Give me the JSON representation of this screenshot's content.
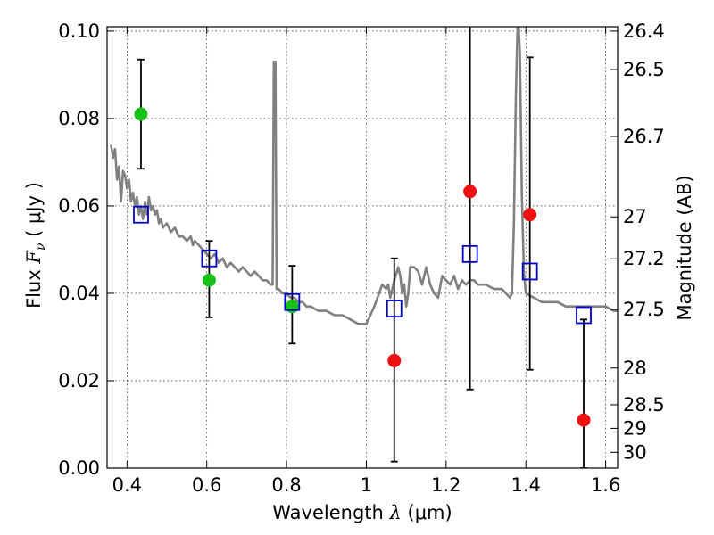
{
  "chart_data": {
    "type": "scatter",
    "xlabel": {
      "pre": "Wavelength  ",
      "sym": "λ",
      "post": " (μm)"
    },
    "ylabel": {
      "pre": "Flux  ",
      "sym": "F",
      "sub": "ν",
      "post": "  ( μJy )"
    },
    "y2label": "Magnitude (AB)",
    "xlim": [
      0.35,
      1.63
    ],
    "ylim": [
      0.0,
      0.101
    ],
    "xticks": [
      0.4,
      0.6,
      0.8,
      1.0,
      1.2,
      1.4,
      1.6
    ],
    "xtick_labels": [
      "0.4",
      "0.6",
      "0.8",
      "1",
      "1.2",
      "1.4",
      "1.6"
    ],
    "yticks": [
      0.0,
      0.02,
      0.04,
      0.06,
      0.08,
      0.1
    ],
    "ytick_labels": [
      "0.00",
      "0.02",
      "0.04",
      "0.06",
      "0.08",
      "0.10"
    ],
    "magnitude_ticks": [
      {
        "label": "26.4",
        "flux": 0.1
      },
      {
        "label": "26.5",
        "flux": 0.0912
      },
      {
        "label": "26.7",
        "flux": 0.0759
      },
      {
        "label": "27",
        "flux": 0.0575
      },
      {
        "label": "27.2",
        "flux": 0.0479
      },
      {
        "label": "27.5",
        "flux": 0.0363
      },
      {
        "label": "28",
        "flux": 0.0229
      },
      {
        "label": "28.5",
        "flux": 0.0145
      },
      {
        "label": "29",
        "flux": 0.0091
      },
      {
        "label": "30",
        "flux": 0.0036
      }
    ],
    "grid": true,
    "colors": {
      "green": "#17bf17",
      "red": "#ee1111",
      "model": "#808080",
      "boxes": "#0000cc",
      "errorbar": "#000000"
    },
    "model_spectrum": [
      [
        0.36,
        0.074
      ],
      [
        0.365,
        0.071
      ],
      [
        0.37,
        0.073
      ],
      [
        0.375,
        0.066
      ],
      [
        0.38,
        0.069
      ],
      [
        0.385,
        0.061
      ],
      [
        0.39,
        0.068
      ],
      [
        0.395,
        0.067
      ],
      [
        0.4,
        0.064
      ],
      [
        0.405,
        0.066
      ],
      [
        0.41,
        0.061
      ],
      [
        0.415,
        0.063
      ],
      [
        0.42,
        0.06
      ],
      [
        0.425,
        0.062
      ],
      [
        0.43,
        0.058
      ],
      [
        0.435,
        0.06
      ],
      [
        0.44,
        0.057
      ],
      [
        0.445,
        0.061
      ],
      [
        0.45,
        0.058
      ],
      [
        0.455,
        0.062
      ],
      [
        0.46,
        0.059
      ],
      [
        0.465,
        0.06
      ],
      [
        0.47,
        0.058
      ],
      [
        0.475,
        0.059
      ],
      [
        0.48,
        0.056
      ],
      [
        0.485,
        0.057
      ],
      [
        0.49,
        0.055
      ],
      [
        0.5,
        0.056
      ],
      [
        0.51,
        0.054
      ],
      [
        0.52,
        0.055
      ],
      [
        0.53,
        0.053
      ],
      [
        0.54,
        0.053
      ],
      [
        0.55,
        0.052
      ],
      [
        0.56,
        0.053
      ],
      [
        0.565,
        0.051
      ],
      [
        0.57,
        0.052
      ],
      [
        0.58,
        0.051
      ],
      [
        0.59,
        0.05
      ],
      [
        0.6,
        0.049
      ],
      [
        0.61,
        0.048
      ],
      [
        0.62,
        0.049
      ],
      [
        0.63,
        0.047
      ],
      [
        0.64,
        0.048
      ],
      [
        0.65,
        0.046
      ],
      [
        0.66,
        0.047
      ],
      [
        0.67,
        0.046
      ],
      [
        0.68,
        0.045
      ],
      [
        0.69,
        0.046
      ],
      [
        0.7,
        0.045
      ],
      [
        0.71,
        0.044
      ],
      [
        0.72,
        0.045
      ],
      [
        0.73,
        0.044
      ],
      [
        0.74,
        0.043
      ],
      [
        0.75,
        0.043
      ],
      [
        0.76,
        0.042
      ],
      [
        0.765,
        0.042
      ],
      [
        0.768,
        0.093
      ],
      [
        0.772,
        0.093
      ],
      [
        0.775,
        0.041
      ],
      [
        0.78,
        0.041
      ],
      [
        0.79,
        0.04
      ],
      [
        0.8,
        0.04
      ],
      [
        0.81,
        0.039
      ],
      [
        0.82,
        0.039
      ],
      [
        0.83,
        0.038
      ],
      [
        0.84,
        0.038
      ],
      [
        0.85,
        0.037
      ],
      [
        0.86,
        0.037
      ],
      [
        0.88,
        0.036
      ],
      [
        0.9,
        0.036
      ],
      [
        0.92,
        0.035
      ],
      [
        0.94,
        0.035
      ],
      [
        0.96,
        0.034
      ],
      [
        0.98,
        0.033
      ],
      [
        0.99,
        0.033
      ],
      [
        1.0,
        0.033
      ],
      [
        1.02,
        0.037
      ],
      [
        1.04,
        0.042
      ],
      [
        1.05,
        0.041
      ],
      [
        1.055,
        0.042
      ],
      [
        1.06,
        0.039
      ],
      [
        1.065,
        0.041
      ],
      [
        1.07,
        0.043
      ],
      [
        1.08,
        0.046
      ],
      [
        1.085,
        0.044
      ],
      [
        1.09,
        0.04
      ],
      [
        1.095,
        0.042
      ],
      [
        1.1,
        0.037
      ],
      [
        1.105,
        0.04
      ],
      [
        1.11,
        0.046
      ],
      [
        1.12,
        0.046
      ],
      [
        1.13,
        0.045
      ],
      [
        1.14,
        0.042
      ],
      [
        1.145,
        0.044
      ],
      [
        1.15,
        0.046
      ],
      [
        1.16,
        0.042
      ],
      [
        1.17,
        0.04
      ],
      [
        1.18,
        0.039
      ],
      [
        1.19,
        0.044
      ],
      [
        1.2,
        0.043
      ],
      [
        1.21,
        0.042
      ],
      [
        1.22,
        0.044
      ],
      [
        1.23,
        0.041
      ],
      [
        1.24,
        0.043
      ],
      [
        1.25,
        0.042
      ],
      [
        1.26,
        0.043
      ],
      [
        1.27,
        0.043
      ],
      [
        1.28,
        0.042
      ],
      [
        1.3,
        0.042
      ],
      [
        1.32,
        0.041
      ],
      [
        1.34,
        0.041
      ],
      [
        1.36,
        0.039
      ],
      [
        1.365,
        0.04
      ],
      [
        1.37,
        0.056
      ],
      [
        1.375,
        0.085
      ],
      [
        1.38,
        0.105
      ],
      [
        1.385,
        0.095
      ],
      [
        1.39,
        0.062
      ],
      [
        1.395,
        0.045
      ],
      [
        1.4,
        0.04
      ],
      [
        1.42,
        0.039
      ],
      [
        1.44,
        0.038
      ],
      [
        1.46,
        0.038
      ],
      [
        1.48,
        0.038
      ],
      [
        1.5,
        0.037
      ],
      [
        1.52,
        0.037
      ],
      [
        1.54,
        0.037
      ],
      [
        1.56,
        0.037
      ],
      [
        1.58,
        0.037
      ],
      [
        1.6,
        0.037
      ],
      [
        1.62,
        0.036
      ],
      [
        1.63,
        0.036
      ]
    ],
    "model_bandpass": [
      {
        "x": 0.435,
        "y": 0.058
      },
      {
        "x": 0.606,
        "y": 0.048
      },
      {
        "x": 0.814,
        "y": 0.038
      },
      {
        "x": 1.07,
        "y": 0.0365
      },
      {
        "x": 1.26,
        "y": 0.049
      },
      {
        "x": 1.41,
        "y": 0.045
      },
      {
        "x": 1.545,
        "y": 0.035
      }
    ],
    "observed": [
      {
        "x": 0.435,
        "y": 0.081,
        "err": [
          0.0685,
          0.0935
        ],
        "color": "green"
      },
      {
        "x": 0.606,
        "y": 0.043,
        "err": [
          0.0345,
          0.052
        ],
        "color": "green"
      },
      {
        "x": 0.814,
        "y": 0.037,
        "err": [
          0.0285,
          0.0463
        ],
        "color": "green"
      },
      {
        "x": 1.07,
        "y": 0.0246,
        "err": [
          0.0015,
          0.048
        ],
        "color": "red"
      },
      {
        "x": 1.26,
        "y": 0.0633,
        "err": [
          0.018,
          0.104
        ],
        "color": "red"
      },
      {
        "x": 1.41,
        "y": 0.058,
        "err": [
          0.0225,
          0.094
        ],
        "color": "red"
      },
      {
        "x": 1.545,
        "y": 0.011,
        "err": [
          0.0,
          0.034
        ],
        "color": "red"
      }
    ]
  }
}
